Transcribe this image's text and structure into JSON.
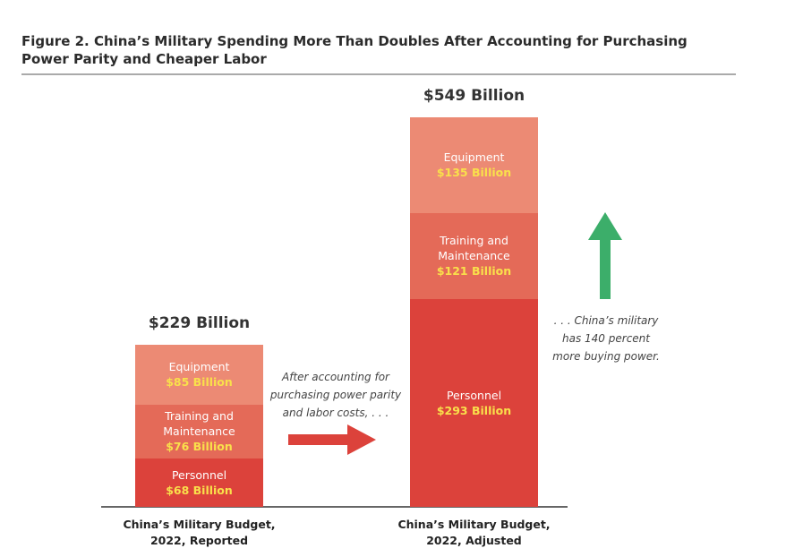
{
  "chart_data": {
    "type": "stacked_bar",
    "title": "Figure 2. China’s Military Spending More Than Doubles After Accounting for Purchasing Power Parity and Cheaper Labor",
    "categories": [
      "China’s Military Budget, 2022, Reported",
      "China’s Military Budget, 2022, Adjusted"
    ],
    "series": [
      {
        "name": "Personnel",
        "color": "#dc423b",
        "values": [
          68,
          293
        ],
        "value_labels": [
          "$68 Billion",
          "$293 Billion"
        ]
      },
      {
        "name": "Training and Maintenance",
        "color": "#e46a58",
        "values": [
          76,
          121
        ],
        "value_labels": [
          "$76 Billion",
          "$121 Billion"
        ]
      },
      {
        "name": "Equipment",
        "color": "#ec8a74",
        "values": [
          85,
          135
        ],
        "value_labels": [
          "$85 Billion",
          "$135 Billion"
        ]
      }
    ],
    "totals": {
      "values": [
        229,
        549
      ],
      "value_labels": [
        "$229 Billion",
        "$549 Billion"
      ]
    },
    "annotations": [
      "After accounting for purchasing power parity and labor costs, . . .",
      ". . . China’s military has 140 percent more buying power."
    ]
  }
}
